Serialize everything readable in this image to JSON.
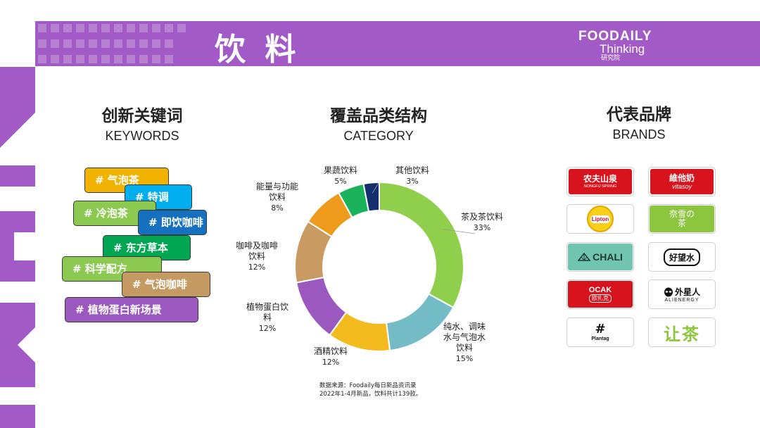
{
  "header": {
    "title": "饮 料"
  },
  "logo": {
    "line1": "FOODAILY",
    "line2": "Thinking",
    "line3": "研究院"
  },
  "keywords": {
    "title_cn": "创新关键词",
    "title_en": "KEYWORDS",
    "tags": [
      {
        "label": "# 气泡茶",
        "color": "#f2b200"
      },
      {
        "label": "# 特调",
        "color": "#00adee"
      },
      {
        "label": "# 冷泡茶",
        "color": "#8cc950"
      },
      {
        "label": "# 即饮咖啡",
        "color": "#1570c0"
      },
      {
        "label": "# 东方草本",
        "color": "#00a651"
      },
      {
        "label": "# 科学配方",
        "color": "#8cc950"
      },
      {
        "label": "# 气泡咖啡",
        "color": "#c59a62"
      },
      {
        "label": "# 植物蛋白新场景",
        "color": "#9b59c0"
      }
    ]
  },
  "category": {
    "title_cn": "覆盖品类结构",
    "title_en": "CATEGORY"
  },
  "chart_data": {
    "type": "pie",
    "title": "覆盖品类结构",
    "subtitle": "CATEGORY",
    "slices": [
      {
        "label": "茶及茶饮料",
        "value": 33,
        "pct": "33%",
        "color": "#8fcf4c"
      },
      {
        "label": "纯水、调味水与气泡水饮料",
        "value": 15,
        "pct": "15%",
        "color": "#74bdc6"
      },
      {
        "label": "酒精饮料",
        "value": 12,
        "pct": "12%",
        "color": "#f4bb1e"
      },
      {
        "label": "植物蛋白饮料",
        "value": 12,
        "pct": "12%",
        "color": "#9b59c0"
      },
      {
        "label": "咖啡及咖啡饮料",
        "value": 12,
        "pct": "12%",
        "color": "#c99a62"
      },
      {
        "label": "能量与功能饮料",
        "value": 8,
        "pct": "8%",
        "color": "#ee9b1d"
      },
      {
        "label": "果蔬饮料",
        "value": 5,
        "pct": "5%",
        "color": "#1ab35c"
      },
      {
        "label": "其他饮料",
        "value": 3,
        "pct": "3%",
        "color": "#142f6e"
      }
    ]
  },
  "source": {
    "line1": "数据来源：Foodaily每日新品资讯录",
    "line2": "2022年1-4月新品，饮料共计139款。"
  },
  "brands": {
    "title_cn": "代表品牌",
    "title_en": "BRANDS",
    "items": [
      {
        "name": "农夫山泉",
        "sub": "NONGFU SPRING",
        "bg": "#d7141d",
        "fg": "#ffffff"
      },
      {
        "name": "維他奶",
        "sub": "vitasoy",
        "bg": "#d7141d",
        "fg": "#ffffff"
      },
      {
        "name": "Lipton",
        "sub": "",
        "bg": "#ffffff",
        "fg": "#c8102e"
      },
      {
        "name": "奈雪の茶",
        "sub": "",
        "bg": "#8cc63f",
        "fg": "#ffffff"
      },
      {
        "name": "CHALI",
        "sub": "",
        "bg": "#6fc5b0",
        "fg": "#1e3a30"
      },
      {
        "name": "好望水",
        "sub": "",
        "bg": "#ffffff",
        "fg": "#111111"
      },
      {
        "name": "OCAK",
        "sub": "欧扎克",
        "bg": "#d7141d",
        "fg": "#ffffff"
      },
      {
        "name": "外星人",
        "sub": "ALIENERGY",
        "bg": "#ffffff",
        "fg": "#111111"
      },
      {
        "name": "#",
        "sub": "Plantag",
        "bg": "#ffffff",
        "fg": "#111111"
      },
      {
        "name": "让茶",
        "sub": "",
        "bg": "#ffffff",
        "fg": "#8cc63f"
      }
    ]
  },
  "colors": {
    "brand_purple": "#a25bc6"
  }
}
